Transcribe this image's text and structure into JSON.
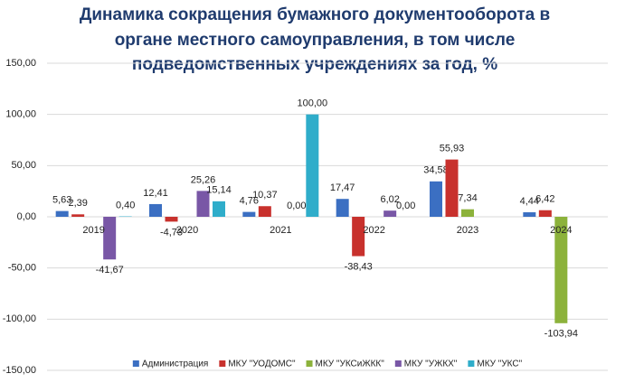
{
  "chart_data": {
    "type": "bar",
    "title": [
      "Динамика сокращения бумажного документооборота в",
      "органе местного самоуправления, в том числе",
      "подведомственных учреждениях за год, %"
    ],
    "categories": [
      "2019",
      "2020",
      "2021",
      "2022",
      "2023",
      "2024"
    ],
    "series": [
      {
        "name": "Администрация",
        "color": "#3b6fc2",
        "values": [
          5.63,
          12.41,
          4.76,
          17.47,
          34.58,
          4.44
        ],
        "value_labels": [
          "5,63",
          "12,41",
          "4,76",
          "17,47",
          "34,58",
          "4,44"
        ]
      },
      {
        "name": "МКУ \"УОДОМС\"",
        "color": "#c8312d",
        "values": [
          2.39,
          -4.73,
          10.37,
          -38.43,
          55.93,
          6.42
        ],
        "value_labels": [
          "2,39",
          "-4,73",
          "10,37",
          "-38,43",
          "55,93",
          "6,42"
        ]
      },
      {
        "name": "МКУ \"УКСиЖКК\"",
        "color": "#8cb23b",
        "values": [
          null,
          null,
          null,
          null,
          7.34,
          -103.94
        ],
        "value_labels": [
          null,
          null,
          null,
          null,
          "7,34",
          "-103,94"
        ]
      },
      {
        "name": "МКУ \"УЖКХ\"",
        "color": "#7957a6",
        "values": [
          -41.67,
          25.26,
          0,
          6.02,
          null,
          null
        ],
        "value_labels": [
          "-41,67",
          "25,26",
          "0,00",
          "6,02",
          null,
          null
        ]
      },
      {
        "name": "МКУ \"УКС\"",
        "color": "#2fadca",
        "values": [
          0.4,
          15.14,
          100,
          0,
          null,
          null
        ],
        "value_labels": [
          "0,40",
          "15,14",
          "100,00",
          "0,00",
          null,
          null
        ]
      }
    ],
    "ylim": [
      -150,
      150
    ],
    "yticks": [
      {
        "value": -150,
        "label": "-150,00"
      },
      {
        "value": -100,
        "label": "-100,00"
      },
      {
        "value": -50,
        "label": "-50,00"
      },
      {
        "value": 0,
        "label": "0,00"
      },
      {
        "value": 50,
        "label": "50,00"
      },
      {
        "value": 100,
        "label": "100,00"
      },
      {
        "value": 150,
        "label": "150,00"
      }
    ],
    "grid": true,
    "legend": "bottom"
  }
}
